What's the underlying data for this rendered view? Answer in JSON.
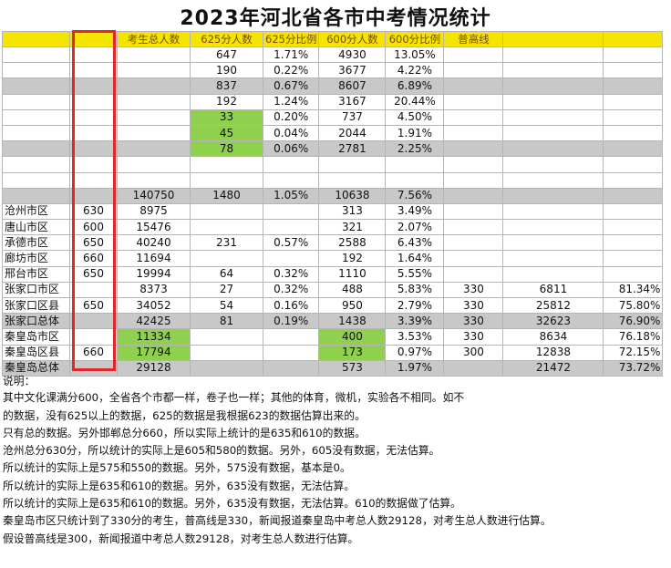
{
  "title": "2023年河北省各市中考情况统计",
  "headers": [
    "",
    "",
    "考生总人数",
    "625分人数",
    "625分比例",
    "600分人数",
    "600分比例",
    "普高线",
    "",
    ""
  ],
  "rows": [
    {
      "style": "",
      "cells": [
        "",
        "",
        "",
        "647",
        "1.71%",
        "4930",
        "13.05%",
        "",
        "",
        ""
      ]
    },
    {
      "style": "",
      "cells": [
        "",
        "",
        "",
        "190",
        "0.22%",
        "3677",
        "4.22%",
        "",
        "",
        ""
      ]
    },
    {
      "style": "gray",
      "cells": [
        "",
        "",
        "",
        "837",
        "0.67%",
        "8607",
        "6.89%",
        "",
        "",
        ""
      ]
    },
    {
      "style": "",
      "cells": [
        "",
        "",
        "",
        "192",
        "1.24%",
        "3167",
        "20.44%",
        "",
        "",
        ""
      ]
    },
    {
      "style": "",
      "green": [
        3
      ],
      "cells": [
        "",
        "",
        "",
        "33",
        "0.20%",
        "737",
        "4.50%",
        "",
        "",
        ""
      ]
    },
    {
      "style": "",
      "green": [
        3
      ],
      "cells": [
        "",
        "",
        "",
        "45",
        "0.04%",
        "2044",
        "1.91%",
        "",
        "",
        ""
      ]
    },
    {
      "style": "gray",
      "green": [
        3
      ],
      "cells": [
        "",
        "",
        "",
        "78",
        "0.06%",
        "2781",
        "2.25%",
        "",
        "",
        ""
      ]
    },
    {
      "style": "",
      "cells": [
        "",
        "",
        "",
        "",
        "",
        "",
        "",
        "",
        "",
        ""
      ]
    },
    {
      "style": "",
      "cells": [
        "",
        "",
        "",
        "",
        "",
        "",
        "",
        "",
        "",
        ""
      ]
    },
    {
      "style": "gray",
      "cells": [
        "",
        "",
        "140750",
        "1480",
        "1.05%",
        "10638",
        "7.56%",
        "",
        "",
        ""
      ]
    },
    {
      "style": "",
      "cells": [
        "沧州市区",
        "630",
        "8975",
        "",
        "",
        "313",
        "3.49%",
        "",
        "",
        ""
      ]
    },
    {
      "style": "",
      "cells": [
        "唐山市区",
        "600",
        "15476",
        "",
        "",
        "321",
        "2.07%",
        "",
        "",
        ""
      ]
    },
    {
      "style": "",
      "cells": [
        "承德市区",
        "650",
        "40240",
        "231",
        "0.57%",
        "2588",
        "6.43%",
        "",
        "",
        ""
      ]
    },
    {
      "style": "",
      "cells": [
        "廊坊市区",
        "660",
        "11694",
        "",
        "",
        "192",
        "1.64%",
        "",
        "",
        ""
      ]
    },
    {
      "style": "",
      "cells": [
        "邢台市区",
        "650",
        "19994",
        "64",
        "0.32%",
        "1110",
        "5.55%",
        "",
        "",
        ""
      ]
    },
    {
      "style": "",
      "cells": [
        "张家口市区",
        "",
        "8373",
        "27",
        "0.32%",
        "488",
        "5.83%",
        "330",
        "6811",
        "81.34%"
      ]
    },
    {
      "style": "",
      "cells": [
        "张家口区县",
        "650",
        "34052",
        "54",
        "0.16%",
        "950",
        "2.79%",
        "330",
        "25812",
        "75.80%"
      ]
    },
    {
      "style": "gray",
      "cells": [
        "张家口总体",
        "",
        "42425",
        "81",
        "0.19%",
        "1438",
        "3.39%",
        "330",
        "32623",
        "76.90%"
      ]
    },
    {
      "style": "",
      "green": [
        2,
        5
      ],
      "cells": [
        "秦皇岛市区",
        "",
        "11334",
        "",
        "",
        "400",
        "3.53%",
        "330",
        "8634",
        "76.18%"
      ]
    },
    {
      "style": "",
      "green": [
        2,
        5
      ],
      "cells": [
        "秦皇岛区县",
        "660",
        "17794",
        "",
        "",
        "173",
        "0.97%",
        "300",
        "12838",
        "72.15%"
      ]
    },
    {
      "style": "gray",
      "cells": [
        "秦皇岛总体",
        "",
        "29128",
        "",
        "",
        "573",
        "1.97%",
        "",
        "21472",
        "73.72%"
      ]
    }
  ],
  "notes_label": "说明：",
  "notes": [
    "其中文化课满分600，全省各个市都一样，卷子也一样；其他的体育，微机，实验各不相同。如不",
    "的数据，没有625以上的数据，625的数据是我根据623的数据估算出来的。",
    "只有总的数据。另外邯郸总分660，所以实际上统计的是635和610的数据。",
    "沧州总分630分，所以统计的实际上是605和580的数据。另外，605没有数据，无法估算。",
    "所以统计的实际上是575和550的数据。另外，575没有数据，基本是0。",
    "所以统计的实际上是635和610的数据。另外，635没有数据，无法估算。",
    "所以统计的实际上是635和610的数据。另外，635没有数据，无法估算。610的数据做了估算。",
    "秦皇岛市区只统计到了330分的考生，普高线是330，新闻报道秦皇岛中考总人数29128，对考生总人数进行估算。",
    "假设普高线是300，新闻报道中考总人数29128，对考生总人数进行估算。"
  ]
}
